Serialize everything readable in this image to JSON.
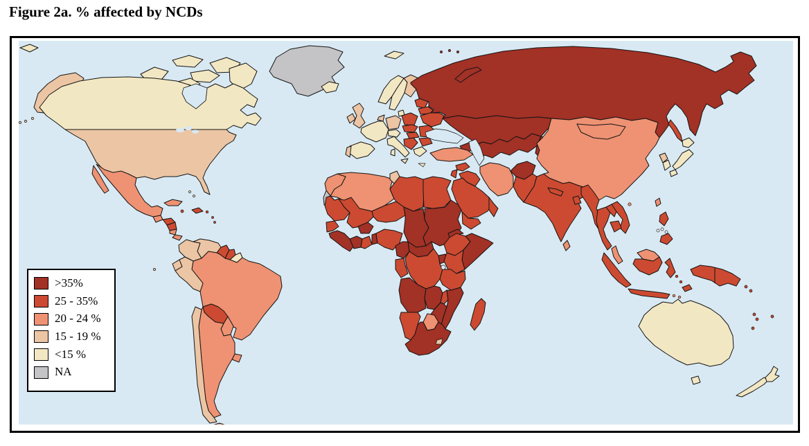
{
  "figure": {
    "title": "Figure 2a. % affected by NCDs"
  },
  "map": {
    "ocean_color": "#D8E9F3",
    "outline_color": "#141414",
    "frame_color": "#000000",
    "legend_order": [
      "gt35",
      "r25_35",
      "r20_24",
      "r15_19",
      "lt15",
      "na"
    ],
    "categories": {
      "gt35": {
        "label": ">35%",
        "color": "#A23126"
      },
      "r25_35": {
        "label": "25 - 35%",
        "color": "#CC4A31"
      },
      "r20_24": {
        "label": "20 - 24 %",
        "color": "#EE9273"
      },
      "r15_19": {
        "label": "15 - 19 %",
        "color": "#EBC5A4"
      },
      "lt15": {
        "label": "<15 %",
        "color": "#F2E7C3"
      },
      "na": {
        "label": "NA",
        "color": "#C4C4C6"
      },
      "uncolored": {
        "label": "",
        "color": "#FFFFFF"
      }
    },
    "regions": {
      "greenland": "na",
      "canadian-arctic": "lt15",
      "canada": "lt15",
      "alaska": "r15_19",
      "usa": "r15_19",
      "mexico": "r20_24",
      "guatemala": "r20_24",
      "honduras": "r25_35",
      "nicaragua": "r25_35",
      "costa-rica": "r20_24",
      "panama": "r20_24",
      "bahamas": "lt15",
      "cuba": "r20_24",
      "jamaica": "r25_35",
      "hispaniola": "r25_35",
      "puerto-rico": "r25_35",
      "lesser-antilles": "r25_35",
      "colombia": "r15_19",
      "venezuela": "r15_19",
      "guyana": "r25_35",
      "suriname": "r25_35",
      "french-guiana": "lt15",
      "ecuador": "r15_19",
      "peru": "r15_19",
      "brazil": "r20_24",
      "bolivia": "r25_35",
      "paraguay": "r20_24",
      "uruguay": "r20_24",
      "argentina": "r20_24",
      "chile": "r15_19",
      "tierra-del-fuego": "r20_24",
      "galapagos": "r15_19",
      "iceland": "lt15",
      "svalbard": "lt15",
      "norway": "lt15",
      "sweden": "lt15",
      "finland": "r15_19",
      "denmark": "lt15",
      "uk": "r15_19",
      "ireland": "r15_19",
      "netherlands-belgium": "r15_19",
      "germany": "r15_19",
      "france": "lt15",
      "spain": "lt15",
      "portugal": "r15_19",
      "italy": "lt15",
      "alpine": "lt15",
      "poland": "r25_35",
      "czech-slovakia": "r25_35",
      "hungary": "r25_35",
      "romania": "r25_35",
      "balkans": "r25_35",
      "bulgaria": "r25_35",
      "greece": "lt15",
      "baltics": "r25_35",
      "belarus": "r25_35",
      "ukraine": "r25_35",
      "russia": "gt35",
      "novaya-zemlya": "gt35",
      "franz-josef": "gt35",
      "kazakhstan": "gt35",
      "central-asia": "gt35",
      "kyrgyz-tajik": "gt35",
      "caucasus": "gt35",
      "turkey": "r20_24",
      "cyprus": "r20_24",
      "syria": "r25_35",
      "jordan-israel": "r25_35",
      "iraq": "r25_35",
      "saudi-arabia": "r25_35",
      "yemen": "r25_35",
      "oman": "r25_35",
      "iran": "r20_24",
      "afghanistan": "gt35",
      "pakistan": "r25_35",
      "india": "r25_35",
      "nepal": "r25_35",
      "bangladesh": "r25_35",
      "sri-lanka": "r20_24",
      "china": "r20_24",
      "mongolia": "r20_24",
      "taiwan": "r20_24",
      "hainan": "r20_24",
      "north-korea": "r15_19",
      "south-korea": "lt15",
      "japan": "lt15",
      "sakhalin": "r25_35",
      "myanmar": "r25_35",
      "thailand": "r25_35",
      "laos": "r25_35",
      "vietnam": "r25_35",
      "cambodia": "r25_35",
      "malaysia": "r20_24",
      "indonesia": "r25_35",
      "lesser-sunda": "r20_24",
      "timor": "r25_35",
      "philippines": "r25_35",
      "philippines-visayas": "uncolored",
      "new-guinea": "r25_35",
      "solomon-islands": "r25_35",
      "vanuatu": "r25_35",
      "fiji": "r25_35",
      "new-caledonia": "r25_35",
      "australia": "lt15",
      "tasmania": "lt15",
      "new-zealand": "lt15",
      "morocco": "r20_24",
      "western-sahara": "na",
      "algeria": "r20_24",
      "tunisia": "r15_19",
      "libya": "r25_35",
      "egypt": "r25_35",
      "mauritania": "r25_35",
      "senegal": "r25_35",
      "guinea-region": "gt35",
      "mali": "r25_35",
      "burkina-faso": "gt35",
      "cote-divoire": "gt35",
      "ghana": "r25_35",
      "togo-benin": "gt35",
      "niger": "r25_35",
      "nigeria": "r25_35",
      "chad": "gt35",
      "sudan": "gt35",
      "eritrea": "gt35",
      "ethiopia": "r25_35",
      "somalia": "gt35",
      "cameroon": "gt35",
      "central-african-republic": "gt35",
      "congo-gabon": "r25_35",
      "drc": "r25_35",
      "uganda": "gt35",
      "kenya": "r25_35",
      "tanzania": "r25_35",
      "angola": "gt35",
      "zambia": "gt35",
      "malawi": "r25_35",
      "mozambique": "gt35",
      "zimbabwe": "gt35",
      "botswana": "r20_24",
      "namibia": "r25_35",
      "south-africa": "gt35",
      "lesotho": "r15_19",
      "madagascar": "r25_35"
    }
  }
}
